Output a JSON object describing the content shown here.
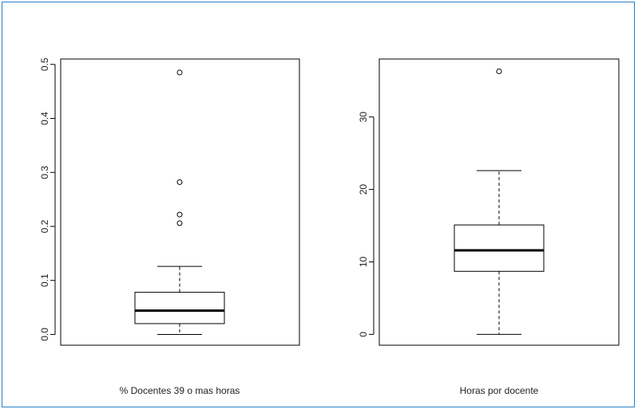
{
  "chart_data": [
    {
      "type": "box",
      "xlabel": "% Docentes 39 o mas horas",
      "ylim": [
        -0.02,
        0.51
      ],
      "yticks": [
        0.0,
        0.1,
        0.2,
        0.3,
        0.4,
        0.5
      ],
      "ytick_labels": [
        "0.0",
        "0.1",
        "0.2",
        "0.3",
        "0.4",
        "0.5"
      ],
      "whisker_low": 0.0,
      "q1": 0.02,
      "median": 0.044,
      "q3": 0.078,
      "whisker_high": 0.126,
      "outliers": [
        0.206,
        0.222,
        0.282,
        0.485
      ],
      "grid": false
    },
    {
      "type": "box",
      "xlabel": "Horas por docente",
      "ylim": [
        -1.5,
        38
      ],
      "yticks": [
        0,
        10,
        20,
        30
      ],
      "ytick_labels": [
        "0",
        "10",
        "20",
        "30"
      ],
      "whisker_low": 0.0,
      "q1": 8.7,
      "median": 11.6,
      "q3": 15.1,
      "whisker_high": 22.6,
      "outliers": [
        36.3
      ],
      "grid": false
    }
  ]
}
